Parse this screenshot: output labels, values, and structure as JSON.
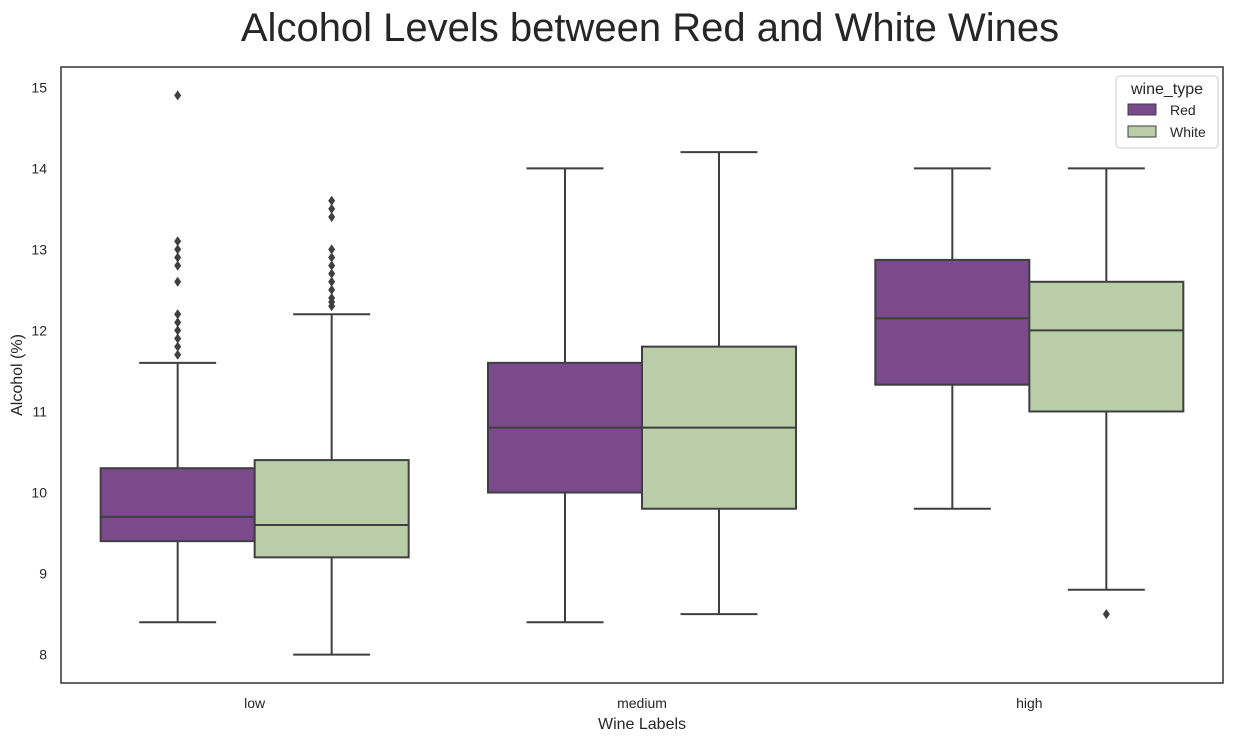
{
  "chart_data": {
    "type": "box",
    "title": "Alcohol Levels between Red and White Wines",
    "xlabel": "Wine Labels",
    "ylabel": "Alcohol (%)",
    "categories": [
      "low",
      "medium",
      "high"
    ],
    "ylim": [
      7.65,
      15.25
    ],
    "yticks": [
      8,
      9,
      10,
      11,
      12,
      13,
      14,
      15
    ],
    "grid": false,
    "legend": {
      "title": "wine_type",
      "position": "top-right"
    },
    "series": [
      {
        "name": "Red",
        "color": "#7a4a8c",
        "boxes": [
          {
            "category": "low",
            "whisker_low": 8.4,
            "q1": 9.4,
            "median": 9.7,
            "q3": 10.3,
            "whisker_high": 11.6,
            "outliers": [
              11.7,
              11.8,
              11.9,
              12.0,
              12.1,
              12.2,
              12.6,
              12.8,
              12.9,
              13.0,
              13.1,
              14.9
            ]
          },
          {
            "category": "medium",
            "whisker_low": 8.4,
            "q1": 10.0,
            "median": 10.8,
            "q3": 11.6,
            "whisker_high": 14.0,
            "outliers": []
          },
          {
            "category": "high",
            "whisker_low": 9.8,
            "q1": 11.33,
            "median": 12.15,
            "q3": 12.87,
            "whisker_high": 14.0,
            "outliers": []
          }
        ]
      },
      {
        "name": "White",
        "color": "#b8cda8",
        "boxes": [
          {
            "category": "low",
            "whisker_low": 8.0,
            "q1": 9.2,
            "median": 9.6,
            "q3": 10.4,
            "whisker_high": 12.2,
            "outliers": [
              12.3,
              12.35,
              12.4,
              12.5,
              12.6,
              12.7,
              12.8,
              12.9,
              13.0,
              13.4,
              13.5,
              13.6
            ]
          },
          {
            "category": "medium",
            "whisker_low": 8.5,
            "q1": 9.8,
            "median": 10.8,
            "q3": 11.8,
            "whisker_high": 14.2,
            "outliers": []
          },
          {
            "category": "high",
            "whisker_low": 8.8,
            "q1": 11.0,
            "median": 12.0,
            "q3": 12.6,
            "whisker_high": 14.0,
            "outliers": [
              8.5
            ]
          }
        ]
      }
    ]
  }
}
